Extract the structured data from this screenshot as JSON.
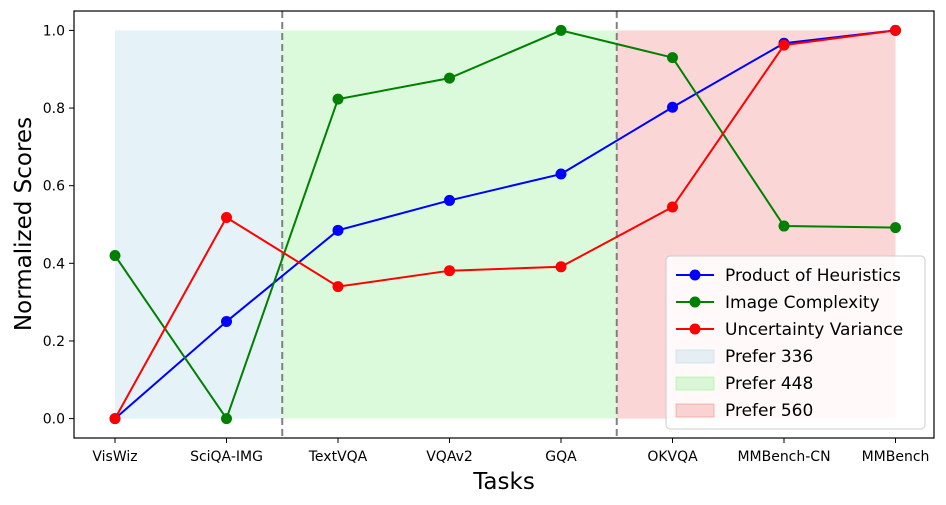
{
  "chart_data": {
    "type": "line",
    "title": "",
    "xlabel": "Tasks",
    "ylabel": "Normalized Scores",
    "categories": [
      "VisWiz",
      "SciQA-IMG",
      "TextVQA",
      "VQAv2",
      "GQA",
      "OKVQA",
      "MMBench-CN",
      "MMBench"
    ],
    "yticks": [
      "0.0",
      "0.2",
      "0.4",
      "0.6",
      "0.8",
      "1.0"
    ],
    "ylim": [
      -0.05,
      1.05
    ],
    "series": [
      {
        "name": "Product of Heuristics",
        "color": "#0000ff",
        "values": [
          0.0,
          0.25,
          0.485,
          0.562,
          0.63,
          0.802,
          0.967,
          1.0
        ]
      },
      {
        "name": "Image Complexity",
        "color": "#008000",
        "values": [
          0.42,
          0.0,
          0.823,
          0.877,
          1.0,
          0.93,
          0.496,
          0.492
        ]
      },
      {
        "name": "Uncertainty Variance",
        "color": "#ff0000",
        "values": [
          0.0,
          0.518,
          0.34,
          0.381,
          0.391,
          0.545,
          0.962,
          1.0
        ]
      }
    ],
    "regions": [
      {
        "name": "Prefer 336",
        "color": "#add8e6",
        "start_index": 0,
        "end_index": 1.5
      },
      {
        "name": "Prefer 448",
        "color": "#90ee90",
        "start_index": 1.5,
        "end_index": 4.5
      },
      {
        "name": "Prefer 560",
        "color": "#f08080",
        "start_index": 4.5,
        "end_index": 7
      }
    ],
    "region_top": 1.0,
    "dividers": [
      1.5,
      4.5
    ],
    "legend_position": "lower-right"
  }
}
